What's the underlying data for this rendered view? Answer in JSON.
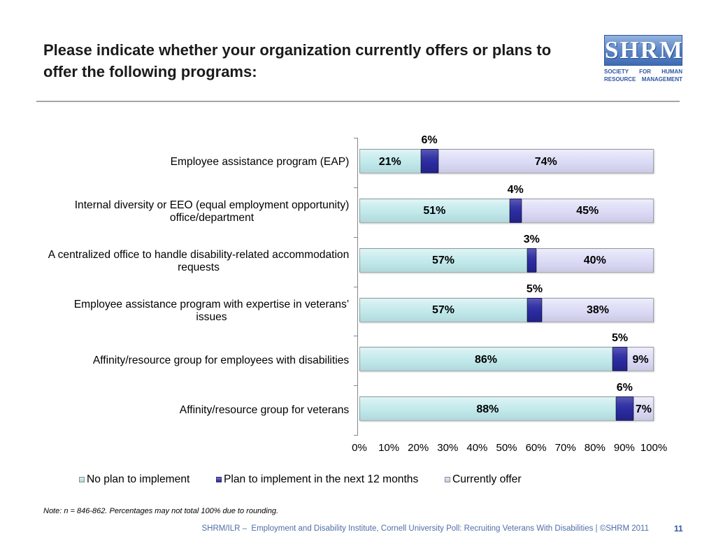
{
  "slide": {
    "title": "Please indicate whether your organization currently offers or plans to offer the following programs:",
    "note": "Note: n = 846-862. Percentages may not total 100% due to rounding.",
    "footer": "SHRM/ILR –  Employment and Disability Institute, Cornell University Poll: Recruiting Veterans With Disabilities | ©SHRM 2011",
    "page_number": "11"
  },
  "logo": {
    "wordmark": "SHRM",
    "tagline_line1": "SOCIETY FOR HUMAN",
    "tagline_line2": "RESOURCE MANAGEMENT"
  },
  "theme": {
    "title_color": "#1a1a1a",
    "brand_blue": "#2d56a3",
    "footer_color": "#4f6ea8",
    "divider_color": "#a6a6a6"
  },
  "chart_data": {
    "type": "bar",
    "orientation": "horizontal",
    "stacked": "percent",
    "categories": [
      "Employee assistance program (EAP)",
      "Internal diversity or EEO (equal employment opportunity) office/department",
      "A centralized office to handle disability-related accommodation requests",
      "Employee assistance program with expertise in veterans’ issues",
      "Affinity/resource group for employees with disabilities",
      "Affinity/resource group for veterans"
    ],
    "series": [
      {
        "name": "No plan to implement",
        "values": [
          21,
          51,
          57,
          57,
          86,
          88
        ],
        "data_labels": [
          "21%",
          "51%",
          "57%",
          "57%",
          "86%",
          "88%"
        ],
        "label_position": "inside",
        "color": "#bfe8ea"
      },
      {
        "name": "Plan to implement in the next 12 months",
        "values": [
          6,
          4,
          3,
          5,
          5,
          6
        ],
        "data_labels": [
          "6%",
          "4%",
          "3%",
          "5%",
          "5%",
          "6%"
        ],
        "label_position": "above",
        "color": "#2a2aa0"
      },
      {
        "name": "Currently offer",
        "values": [
          74,
          45,
          40,
          38,
          9,
          7
        ],
        "data_labels": [
          "74%",
          "45%",
          "40%",
          "38%",
          "9%",
          "7%"
        ],
        "label_position": "inside",
        "color": "#d9d9f5"
      }
    ],
    "xlim": [
      0,
      100
    ],
    "x_ticks": [
      0,
      10,
      20,
      30,
      40,
      50,
      60,
      70,
      80,
      90,
      100
    ],
    "x_tick_labels": [
      "0%",
      "10%",
      "20%",
      "30%",
      "40%",
      "50%",
      "60%",
      "70%",
      "80%",
      "90%",
      "100%"
    ],
    "grid": false,
    "legend_position": "bottom"
  }
}
